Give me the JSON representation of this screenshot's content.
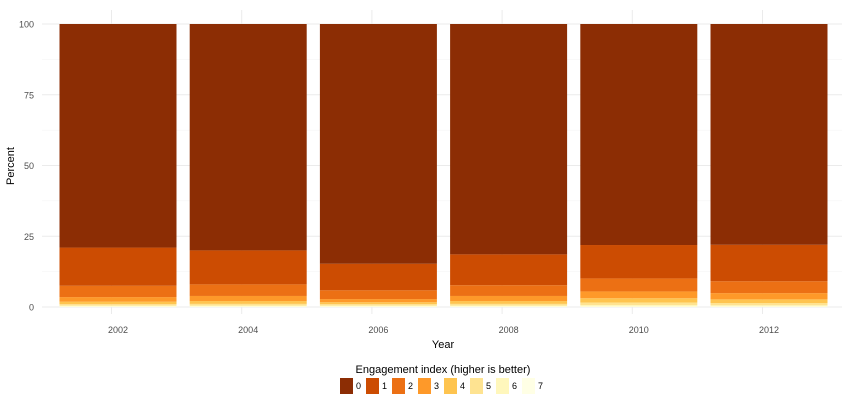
{
  "chart_data": {
    "type": "bar",
    "stacked": true,
    "title": "",
    "xlabel": "Year",
    "ylabel": "Percent",
    "ylim": [
      0,
      100
    ],
    "yticks": [
      0,
      25,
      50,
      75,
      100
    ],
    "grid": true,
    "legend_position": "bottom",
    "legend_title": "Engagement index (higher is better)",
    "categories": [
      "2002",
      "2004",
      "2006",
      "2008",
      "2010",
      "2012"
    ],
    "series": [
      {
        "name": "7",
        "color": "#ffffe5",
        "values": [
          0.2,
          0.2,
          0.2,
          0.2,
          0.2,
          0.2
        ]
      },
      {
        "name": "6",
        "color": "#fff7bc",
        "values": [
          0.3,
          0.3,
          0.3,
          0.3,
          0.5,
          0.4
        ]
      },
      {
        "name": "5",
        "color": "#fee391",
        "values": [
          0.5,
          0.6,
          0.5,
          0.6,
          0.9,
          0.8
        ]
      },
      {
        "name": "4",
        "color": "#fec44f",
        "values": [
          0.9,
          1.0,
          0.7,
          1.0,
          1.5,
          1.3
        ]
      },
      {
        "name": "3",
        "color": "#fe9929",
        "values": [
          1.6,
          1.8,
          1.1,
          1.8,
          2.4,
          2.2
        ]
      },
      {
        "name": "2",
        "color": "#ec7014",
        "values": [
          4.0,
          4.1,
          3.1,
          3.8,
          4.6,
          4.2
        ]
      },
      {
        "name": "1",
        "color": "#cc4c02",
        "values": [
          13.5,
          12.0,
          9.4,
          10.9,
          11.8,
          12.9
        ]
      },
      {
        "name": "0",
        "color": "#8c2d04",
        "values": [
          79.0,
          80.0,
          84.7,
          81.4,
          78.1,
          78.0
        ]
      }
    ]
  }
}
